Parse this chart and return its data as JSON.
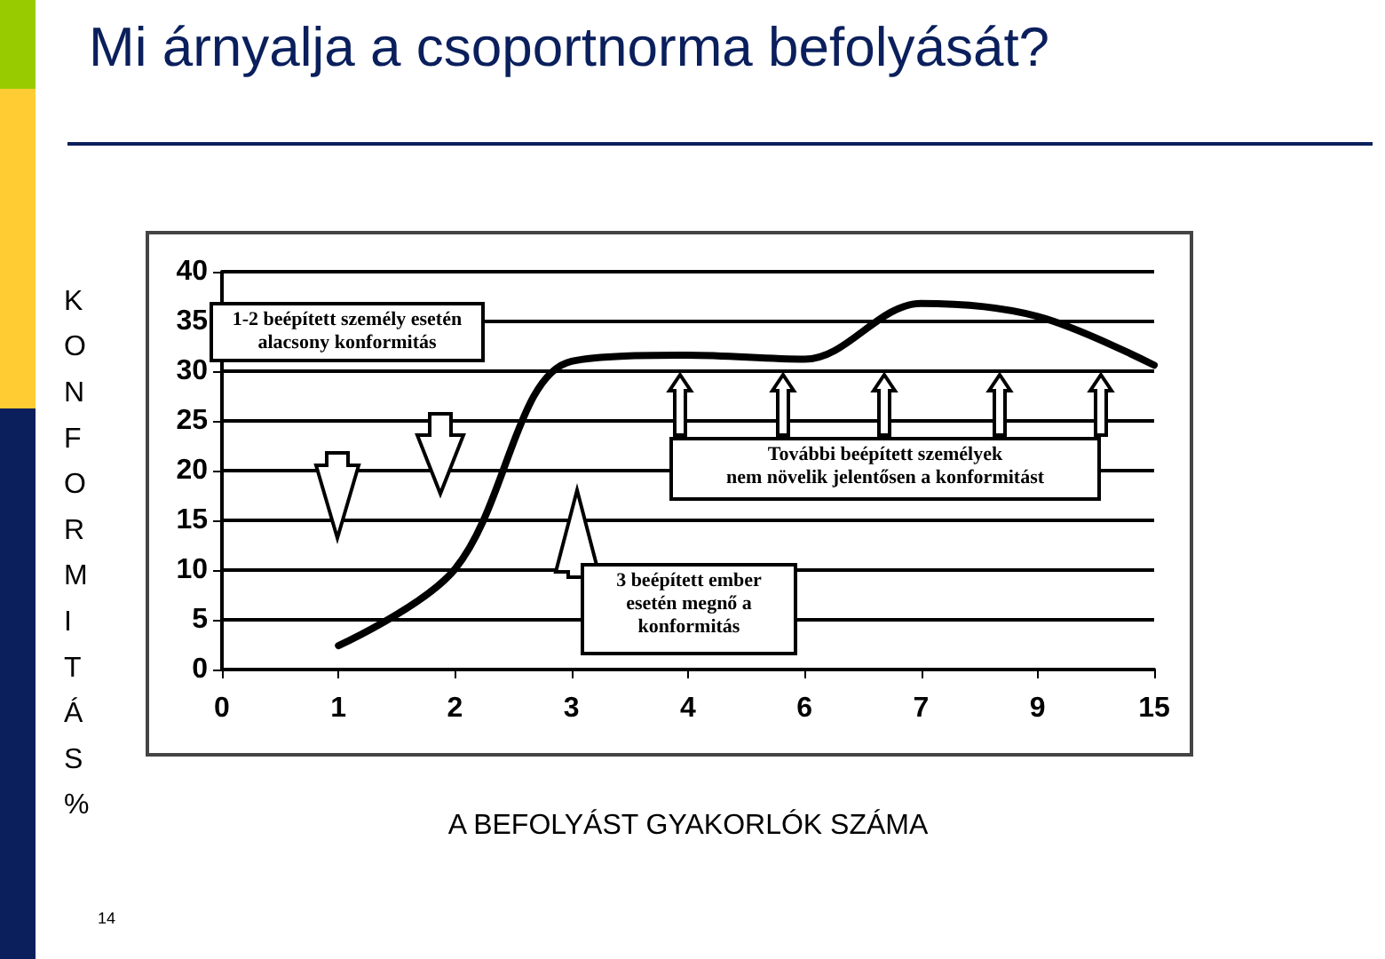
{
  "chart_data": {
    "type": "line",
    "title": "Mi árnyalja a csoportnorma befolyását?",
    "xlabel": "A BEFOLYÁST GYAKORLÓK SZÁMA",
    "ylabel": "KONFORMITÁS %",
    "categories": [
      "0",
      "1",
      "2",
      "3",
      "4",
      "6",
      "7",
      "9",
      "15"
    ],
    "series": [
      {
        "color": "#000000",
        "values": [
          null,
          2.4,
          10.1,
          31,
          31.6,
          31.2,
          36.8,
          35.5,
          30.6
        ]
      }
    ],
    "ylim": [
      0,
      40
    ],
    "yticks": [
      0,
      5,
      10,
      15,
      20,
      25,
      30,
      35,
      40
    ],
    "grid": "y",
    "marker": "none",
    "line_style": "solid",
    "annotations": [
      "1-2 beépített személy esetén\nalacsony konformitás",
      "További beépített személyek\nnem növelik jelentősen a konformitást",
      "3 beépített ember\nesetén megnő a\nkonformitás",
      "14"
    ]
  }
}
